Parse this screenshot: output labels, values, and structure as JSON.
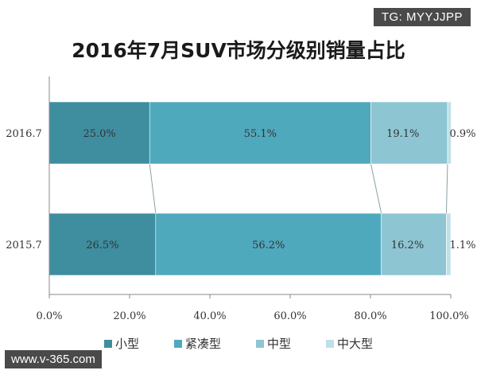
{
  "watermarks": {
    "top": "TG: MYYJJPP",
    "bottom": "www.v-365.com"
  },
  "chart_data": {
    "type": "bar",
    "orientation": "horizontal-stacked-100",
    "title": "2016年7月SUV市场分级别销量占比",
    "categories": [
      "2016.7",
      "2015.7"
    ],
    "series": [
      {
        "name": "小型",
        "values": [
          25.0,
          26.5
        ],
        "labels": [
          "25.0%",
          "26.5%"
        ],
        "color": "#3e8ea0"
      },
      {
        "name": "紧凑型",
        "values": [
          55.1,
          56.2
        ],
        "labels": [
          "55.1%",
          "56.2%"
        ],
        "color": "#4fa9bd"
      },
      {
        "name": "中型",
        "values": [
          19.1,
          16.2
        ],
        "labels": [
          "19.1%",
          "16.2%"
        ],
        "color": "#8dc5d3"
      },
      {
        "name": "中大型",
        "values": [
          0.9,
          1.1
        ],
        "labels": [
          "0.9%",
          "1.1%"
        ],
        "color": "#bfe0e8"
      }
    ],
    "x_ticks": [
      "0.0%",
      "20.0%",
      "40.0%",
      "60.0%",
      "80.0%",
      "100.0%"
    ],
    "xlim": [
      0,
      100
    ],
    "grid": false,
    "legend_position": "bottom",
    "connector_lines": true
  }
}
